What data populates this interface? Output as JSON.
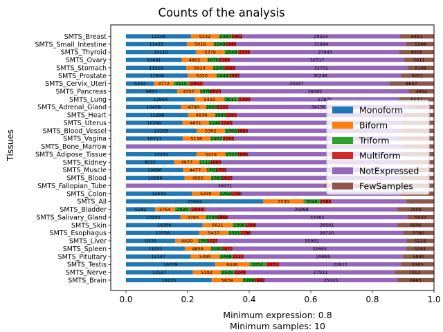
{
  "chart_data": {
    "type": "bar",
    "orientation": "horizontal",
    "stacked": true,
    "normalized": true,
    "title": "Counts of the analysis",
    "ylabel": "Tissues",
    "xlabel_lines": [
      "Minimum expression: 0.8",
      "Minimum samples: 10"
    ],
    "xlim": [
      0,
      1
    ],
    "xticks": [
      "0.0",
      "0.2",
      "0.4",
      "0.6",
      "0.8",
      "1.0"
    ],
    "grid": false,
    "legend_position": "center-right",
    "colors": {
      "Monoform": "#1f77b4",
      "Biform": "#ff7f0e",
      "Triform": "#2ca02c",
      "Multiform": "#d62728",
      "NotExpressed": "#9467bd",
      "FewSamples": "#8c564b"
    },
    "series_names": [
      "Monoform",
      "Biform",
      "Triform",
      "Multiform",
      "NotExpressed",
      "FewSamples"
    ],
    "categories": [
      "SMTS_Breast",
      "SMTS_Small_Intestine",
      "SMTS_Thyroid",
      "SMTS_Ovary",
      "SMTS_Stomach",
      "SMTS_Prostate",
      "SMTS_Cervix_Uteri",
      "SMTS_Pancreas",
      "SMTS_Lung",
      "SMTS_Adrenal_Gland",
      "SMTS_Heart",
      "SMTS_Uterus",
      "SMTS_Blood_Vessel",
      "SMTS_Vagina",
      "SMTS_Bone_Marrow",
      "SMTS_Adipose_Tissue",
      "SMTS_Kidney",
      "SMTS_Muscle",
      "SMTS_Blood",
      "SMTS_Fallopian_Tube",
      "SMTS_Colon",
      "SMTS_All",
      "SMTS_Bladder",
      "SMTS_Salivary_Gland",
      "SMTS_Skin",
      "SMTS_Esophagus",
      "SMTS_Liver",
      "SMTS_Spleen",
      "SMTS_Pituitary",
      "SMTS_Testis",
      "SMTS_Nerve",
      "SMTS_Brain"
    ],
    "values": [
      [
        12204,
        5232,
        2387,
        1992,
        29554,
        6451
      ],
      [
        11425,
        5016,
        2249,
        1940,
        31994,
        5199
      ],
      [
        13110,
        5379,
        2549,
        2334,
        27943,
        6505
      ],
      [
        10431,
        4802,
        2076,
        2182,
        32517,
        5611
      ],
      [
        11518,
        5014,
        2200,
        2083,
        32731,
        5109
      ],
      [
        11606,
        5320,
        2444,
        1981,
        30248,
        6221
      ],
      [
        5443,
        3772,
        2915,
        2952,
        35947,
        8687
      ],
      [
        9857,
        4357,
        1976,
        2025,
        36085,
        4854
      ],
      [
        12964,
        5432,
        2611,
        2390,
        27876,
        6547
      ],
      [
        10459,
        4790,
        2020,
        2201,
        34135,
        4891
      ],
      [
        11288,
        4836,
        1985,
        1950,
        30400,
        5400
      ],
      [
        10390,
        4851,
        2146,
        2245,
        31200,
        5900
      ],
      [
        13293,
        5302,
        2398,
        1894,
        28900,
        6200
      ],
      [
        10711,
        5138,
        2407,
        2165,
        31000,
        6700
      ],
      [
        0,
        0,
        0,
        0,
        52000,
        5780
      ],
      [
        13291,
        5419,
        2327,
        1896,
        28800,
        6300
      ],
      [
        9031,
        4677,
        2112,
        1889,
        33800,
        6100
      ],
      [
        10696,
        4477,
        1767,
        1755,
        32500,
        6400
      ],
      [
        10996,
        4955,
        2082,
        1826,
        31600,
        6300
      ],
      [
        0,
        0,
        0,
        0,
        36071,
        20000
      ],
      [
        12633,
        5230,
        2261,
        1768,
        30500,
        6400
      ],
      [
        25694,
        7530,
        3046,
        2165,
        14000,
        5200
      ],
      [
        5582,
        3764,
        2928,
        2944,
        36898,
        7004
      ],
      [
        10202,
        4785,
        2155,
        1869,
        33762,
        5047
      ],
      [
        14356,
        5621,
        2398,
        1986,
        26561,
        6806
      ],
      [
        13756,
        5437,
        2321,
        1796,
        28720,
        5780
      ],
      [
        9370,
        4420,
        1763,
        1727,
        35992,
        5218
      ],
      [
        11031,
        4858,
        2181,
        1872,
        32693,
        5181
      ],
      [
        12147,
        5390,
        2448,
        2110,
        29885,
        5840
      ],
      [
        16709,
        6446,
        3052,
        2631,
        22817,
        6165
      ],
      [
        12527,
        5192,
        2526,
        2249,
        27911,
        7313
      ],
      [
        16225,
        5839,
        2268,
        1882,
        25145,
        6963
      ]
    ],
    "visible_labels": [
      [
        "12204",
        "5232",
        "2387",
        "1992",
        "29554",
        "6451"
      ],
      [
        "11425",
        "5016",
        "2249",
        "1940",
        "31994",
        "5199"
      ],
      [
        "13110",
        "5379",
        "2549",
        "2334",
        "27943",
        "6505"
      ],
      [
        "10431",
        "4802",
        "2076",
        "2182",
        "32517",
        "5611"
      ],
      [
        "11518",
        "5014",
        "2200",
        "2083",
        "32731",
        "5109"
      ],
      [
        "11606",
        "5320",
        "2444",
        "1981",
        "30248",
        "6221"
      ],
      [
        "5443",
        "3772",
        "2915",
        "2952",
        "35947",
        "8687"
      ],
      [
        "9857",
        "4357",
        "1976",
        "2025",
        "36085",
        "4854"
      ],
      [
        "12964",
        "5432",
        "2611",
        "2390",
        "27876",
        "6547"
      ],
      [
        "10459",
        "4790",
        "2020",
        "2201",
        "34135",
        "4891"
      ],
      [
        "11288",
        "4836",
        "1985",
        "1950",
        "",
        ""
      ],
      [
        "10390",
        "4851",
        "2146",
        "2245",
        "",
        ""
      ],
      [
        "13293",
        "5302",
        "2398",
        "1894",
        "",
        ""
      ],
      [
        "10711",
        "5138",
        "2407",
        "2165",
        "",
        ""
      ],
      [
        "",
        "",
        "",
        "",
        "",
        ""
      ],
      [
        "13291",
        "5419",
        "2327",
        "1896",
        "",
        ""
      ],
      [
        "9031",
        "4677",
        "2112",
        "1889",
        "",
        ""
      ],
      [
        "10696",
        "4477",
        "1767",
        "1755",
        "",
        ""
      ],
      [
        "10996",
        "4955",
        "2082",
        "1826",
        "",
        ""
      ],
      [
        "",
        "",
        "",
        "",
        "36071",
        ""
      ],
      [
        "12633",
        "5230",
        "2261",
        "1768",
        "",
        ""
      ],
      [
        "25694",
        "7530",
        "3046",
        "2165",
        "",
        ""
      ],
      [
        "5582",
        "3764",
        "2928",
        "2944",
        "36898",
        "7004"
      ],
      [
        "10202",
        "4785",
        "2155",
        "1869",
        "33762",
        "5047"
      ],
      [
        "14356",
        "5621",
        "2398",
        "1986",
        "26561",
        "6806"
      ],
      [
        "13756",
        "5437",
        "2321",
        "1796",
        "28720",
        "5780"
      ],
      [
        "9370",
        "4420",
        "1763",
        "1727",
        "35992",
        "5218"
      ],
      [
        "11031",
        "4858",
        "2181",
        "1872",
        "32693",
        "5181"
      ],
      [
        "12147",
        "5390",
        "2448",
        "2110",
        "29885",
        "5840"
      ],
      [
        "16709",
        "6446",
        "3052",
        "2631",
        "22817",
        "6165"
      ],
      [
        "12527",
        "5192",
        "2526",
        "2249",
        "27911",
        "7313"
      ],
      [
        "16225",
        "5839",
        "2268",
        "1882",
        "25145",
        "6963"
      ]
    ]
  }
}
